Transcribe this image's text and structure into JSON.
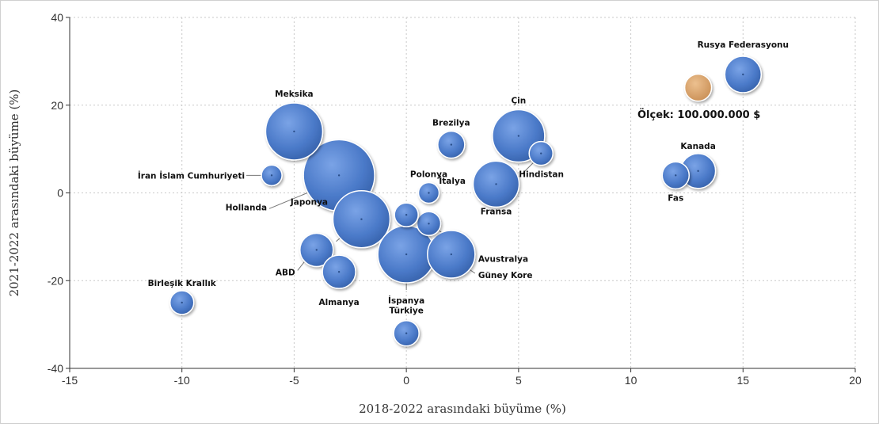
{
  "chart_data": {
    "type": "scatter",
    "subtype": "bubble",
    "title": "",
    "xlabel": "2018-2022 arasındaki büyüme (%)",
    "ylabel": "2021-2022 arasındaki büyüme (%)",
    "xlim": [
      -15,
      20
    ],
    "ylim": [
      -40,
      40
    ],
    "xticks": [
      -15,
      -10,
      -5,
      0,
      5,
      10,
      15,
      20
    ],
    "yticks": [
      -40,
      -20,
      0,
      20,
      40
    ],
    "grid": true,
    "colors": {
      "bubble": "#4f7fcf",
      "scale_bubble": "#d9a56a"
    },
    "scale_label": "Ölçek: 100.000.000 $",
    "scale_point": {
      "x": 13,
      "y": 24
    },
    "points": [
      {
        "name": "Rusya Federasyonu",
        "x": 15,
        "y": 27
      },
      {
        "name": "Meksika",
        "x": -5,
        "y": 14
      },
      {
        "name": "Çin",
        "x": 5,
        "y": 13
      },
      {
        "name": "Brezilya",
        "x": 2,
        "y": 11
      },
      {
        "name": "Hindistan",
        "x": 6,
        "y": 9
      },
      {
        "name": "Kanada",
        "x": 13,
        "y": 5
      },
      {
        "name": "Fas",
        "x": 12,
        "y": 4
      },
      {
        "name": "İran İslam Cumhuriyeti",
        "x": -6,
        "y": 4
      },
      {
        "name": "Hollanda",
        "x": -3,
        "y": 4
      },
      {
        "name": "Fransa",
        "x": 4,
        "y": 2
      },
      {
        "name": "Polonya",
        "x": 1,
        "y": 0
      },
      {
        "name": "Japonya",
        "x": -2,
        "y": -6
      },
      {
        "name": "Avustralya",
        "x": 1,
        "y": -7
      },
      {
        "name": "ABD",
        "x": -4,
        "y": -13
      },
      {
        "name": "İspanya",
        "x": 0,
        "y": -14
      },
      {
        "name": "Güney Kore",
        "x": 2,
        "y": -14
      },
      {
        "name": "İtalya",
        "x": 0,
        "y": -5
      },
      {
        "name": "Almanya",
        "x": -3,
        "y": -18
      },
      {
        "name": "Birleşik Krallık",
        "x": -10,
        "y": -25
      },
      {
        "name": "Türkiye",
        "x": 0,
        "y": -32
      }
    ]
  }
}
